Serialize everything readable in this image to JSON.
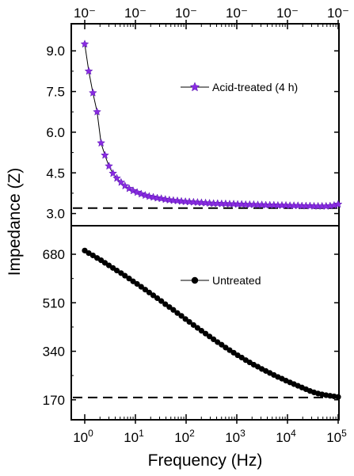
{
  "chart_data": [
    {
      "type": "scatter",
      "panel": "top",
      "x_scale": "log",
      "xlim": [
        1,
        100000
      ],
      "ylim": [
        2.55,
        10.0
      ],
      "y_ticks": [
        3.0,
        4.5,
        6.0,
        7.5,
        9.0
      ],
      "y_tick_labels": [
        "3.0",
        "4.5",
        "6.0",
        "7.5",
        "9.0"
      ],
      "top_tick_labels": [
        "10⁻",
        "10⁻",
        "10⁻",
        "10⁻",
        "10⁻",
        "10⁻"
      ],
      "legend": "right",
      "baseline": 3.2,
      "series": [
        {
          "name": "Acid-treated (4 h)",
          "marker": "star",
          "color": "#8a2be2",
          "x": [
            1.0,
            1.2,
            1.45,
            1.75,
            2.1,
            2.5,
            3.0,
            3.6,
            4.3,
            5.2,
            6.2,
            7.5,
            9.0,
            10.8,
            13.0,
            15.6,
            18.7,
            22.5,
            27,
            32.4,
            38.9,
            46.7,
            56,
            67.3,
            80.8,
            97,
            116,
            140,
            168,
            201,
            242,
            290,
            348,
            418,
            502,
            602,
            723,
            868,
            1042,
            1250,
            1500,
            1800,
            2160,
            2600,
            3120,
            3740,
            4490,
            5390,
            6470,
            7770,
            9320,
            11200,
            13400,
            16100,
            19300,
            23200,
            27800,
            33400,
            40100,
            48100,
            57800,
            69300,
            83200,
            100000
          ],
          "y": [
            9.25,
            8.25,
            7.45,
            6.75,
            5.6,
            5.15,
            4.75,
            4.48,
            4.3,
            4.15,
            4.02,
            3.92,
            3.84,
            3.78,
            3.72,
            3.67,
            3.63,
            3.6,
            3.57,
            3.55,
            3.52,
            3.5,
            3.48,
            3.47,
            3.45,
            3.44,
            3.43,
            3.42,
            3.41,
            3.4,
            3.39,
            3.38,
            3.37,
            3.37,
            3.36,
            3.36,
            3.35,
            3.35,
            3.34,
            3.34,
            3.33,
            3.33,
            3.33,
            3.32,
            3.32,
            3.31,
            3.31,
            3.31,
            3.3,
            3.3,
            3.3,
            3.29,
            3.29,
            3.29,
            3.28,
            3.28,
            3.28,
            3.27,
            3.27,
            3.27,
            3.27,
            3.28,
            3.3,
            3.34
          ]
        }
      ]
    },
    {
      "type": "scatter",
      "panel": "bottom",
      "x_scale": "log",
      "xlim": [
        1,
        100000
      ],
      "ylim": [
        100,
        780
      ],
      "y_ticks": [
        170,
        340,
        510,
        680
      ],
      "y_tick_labels": [
        "170",
        "340",
        "510",
        "680"
      ],
      "x_tick_labels": [
        "10⁰",
        "10¹",
        "10²",
        "10³",
        "10⁴",
        "10⁵"
      ],
      "legend": "right",
      "baseline": 178,
      "series": [
        {
          "name": "Untreated",
          "marker": "circle",
          "color": "#000000",
          "x": [
            1.0,
            1.2,
            1.45,
            1.75,
            2.1,
            2.5,
            3.0,
            3.6,
            4.3,
            5.2,
            6.2,
            7.5,
            9.0,
            10.8,
            13.0,
            15.6,
            18.7,
            22.5,
            27,
            32.4,
            38.9,
            46.7,
            56,
            67.3,
            80.8,
            97,
            116,
            140,
            168,
            201,
            242,
            290,
            348,
            418,
            502,
            602,
            723,
            868,
            1042,
            1250,
            1500,
            1800,
            2160,
            2600,
            3120,
            3740,
            4490,
            5390,
            6470,
            7770,
            9320,
            11200,
            13400,
            16100,
            19300,
            23200,
            27800,
            33400,
            40100,
            48100,
            57800,
            69300,
            83200,
            100000
          ],
          "y": [
            693,
            684,
            676,
            667,
            659,
            650,
            641,
            632,
            623,
            614,
            605,
            595,
            585,
            576,
            566,
            556,
            546,
            536,
            526,
            516,
            505,
            495,
            485,
            474,
            464,
            453,
            443,
            432,
            422,
            412,
            402,
            392,
            382,
            372,
            363,
            353,
            344,
            335,
            326,
            318,
            309,
            301,
            293,
            286,
            278,
            271,
            264,
            257,
            250,
            244,
            237,
            231,
            225,
            219,
            213,
            207,
            201,
            196,
            192,
            189,
            186,
            184,
            182,
            180
          ]
        }
      ]
    }
  ],
  "axes": {
    "xlabel": "Frequency (Hz)",
    "ylabel": "Impedance (Z)"
  }
}
